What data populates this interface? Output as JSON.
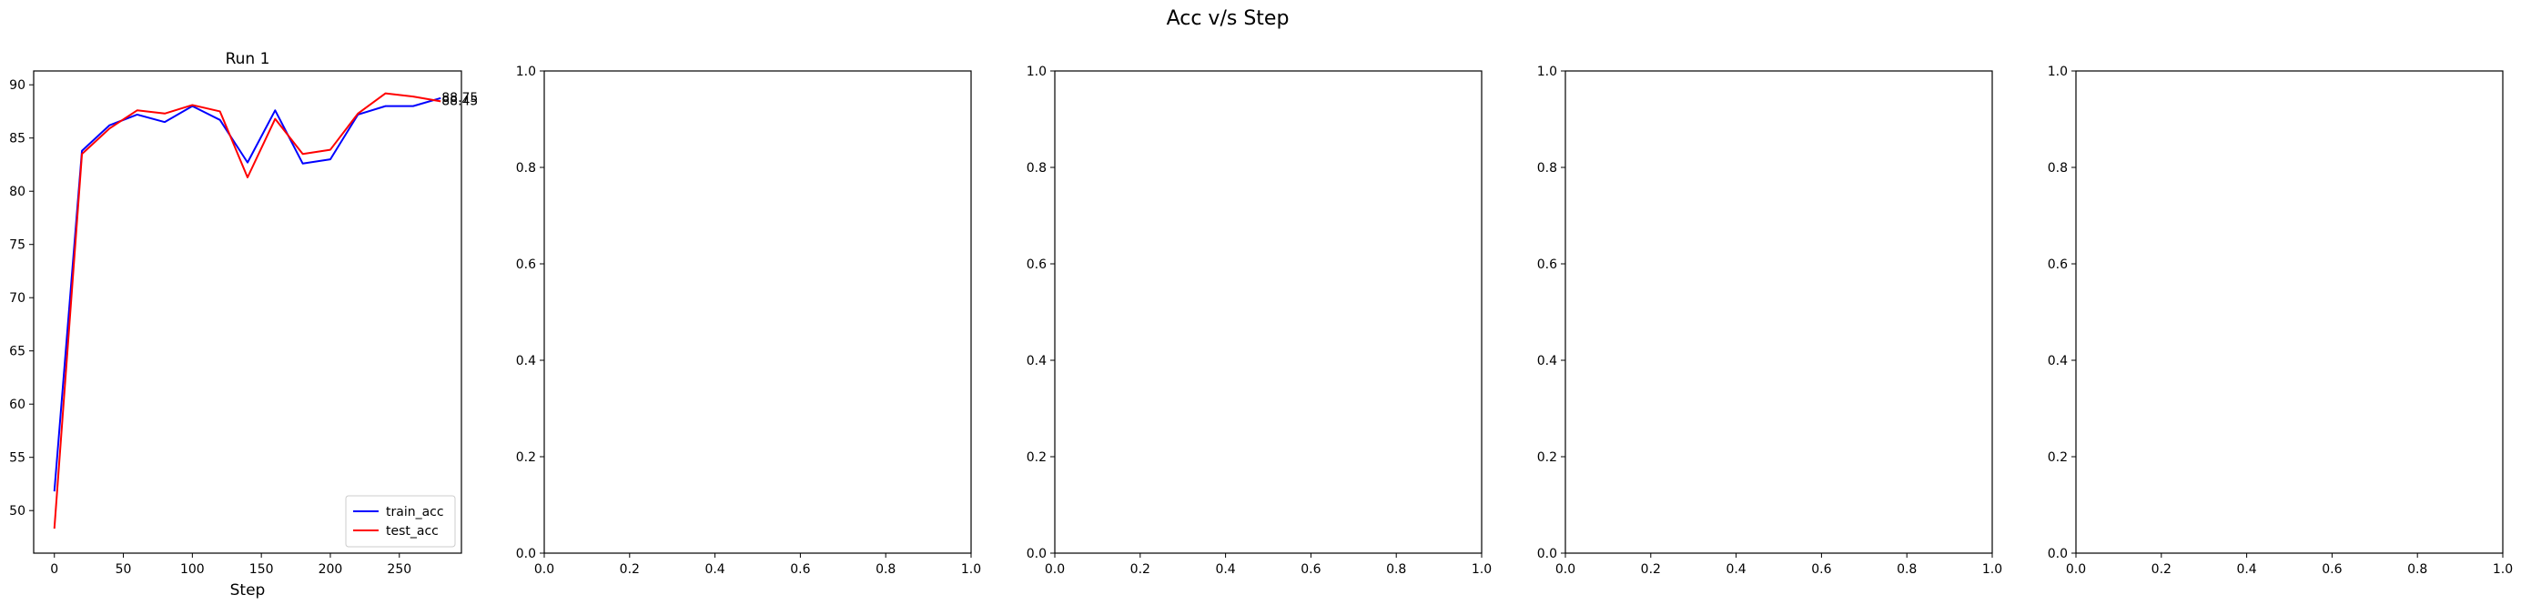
{
  "figure": {
    "suptitle": "Acc v/s Step"
  },
  "chart_data": [
    {
      "type": "line",
      "title": "Run 1",
      "xlabel": "Step",
      "ylabel": "",
      "xlim": [
        -15,
        295
      ],
      "ylim": [
        46,
        91.3
      ],
      "xticks": [
        0,
        50,
        100,
        150,
        200,
        250
      ],
      "yticks": [
        50,
        55,
        60,
        65,
        70,
        75,
        80,
        85,
        90
      ],
      "grid": false,
      "legend": "lower-right",
      "series": [
        {
          "name": "train_acc",
          "color": "#0000ff",
          "x": [
            0,
            20,
            40,
            60,
            80,
            100,
            120,
            140,
            160,
            180,
            200,
            220,
            240,
            260,
            280
          ],
          "y": [
            51.8,
            83.8,
            86.2,
            87.2,
            86.5,
            88.0,
            86.7,
            82.7,
            87.6,
            82.6,
            83.0,
            87.2,
            88.0,
            88.0,
            88.75
          ],
          "end_label": "88.75"
        },
        {
          "name": "test_acc",
          "color": "#ff0000",
          "x": [
            0,
            20,
            40,
            60,
            80,
            100,
            120,
            140,
            160,
            180,
            200,
            220,
            240,
            260,
            280
          ],
          "y": [
            48.3,
            83.5,
            85.9,
            87.6,
            87.3,
            88.1,
            87.5,
            81.3,
            86.8,
            83.5,
            83.9,
            87.3,
            89.2,
            88.9,
            88.45
          ],
          "end_label": "88.45"
        }
      ]
    },
    {
      "type": "line",
      "title": "",
      "xlabel": "",
      "ylabel": "",
      "xlim": [
        0,
        1
      ],
      "ylim": [
        0,
        1
      ],
      "xticks": [
        0.0,
        0.2,
        0.4,
        0.6,
        0.8,
        1.0
      ],
      "yticks": [
        0.0,
        0.2,
        0.4,
        0.6,
        0.8,
        1.0
      ],
      "series": []
    },
    {
      "type": "line",
      "title": "",
      "xlabel": "",
      "ylabel": "",
      "xlim": [
        0,
        1
      ],
      "ylim": [
        0,
        1
      ],
      "xticks": [
        0.0,
        0.2,
        0.4,
        0.6,
        0.8,
        1.0
      ],
      "yticks": [
        0.0,
        0.2,
        0.4,
        0.6,
        0.8,
        1.0
      ],
      "series": []
    },
    {
      "type": "line",
      "title": "",
      "xlabel": "",
      "ylabel": "",
      "xlim": [
        0,
        1
      ],
      "ylim": [
        0,
        1
      ],
      "xticks": [
        0.0,
        0.2,
        0.4,
        0.6,
        0.8,
        1.0
      ],
      "yticks": [
        0.0,
        0.2,
        0.4,
        0.6,
        0.8,
        1.0
      ],
      "series": []
    },
    {
      "type": "line",
      "title": "",
      "xlabel": "",
      "ylabel": "",
      "xlim": [
        0,
        1
      ],
      "ylim": [
        0,
        1
      ],
      "xticks": [
        0.0,
        0.2,
        0.4,
        0.6,
        0.8,
        1.0
      ],
      "yticks": [
        0.0,
        0.2,
        0.4,
        0.6,
        0.8,
        1.0
      ],
      "series": []
    }
  ]
}
